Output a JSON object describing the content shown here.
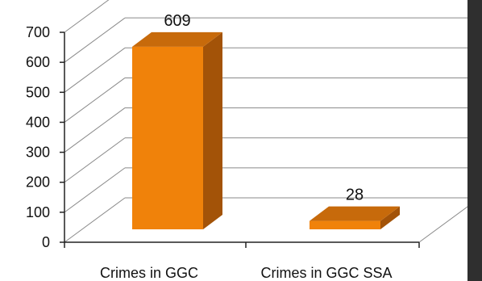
{
  "chart_data": {
    "type": "bar",
    "categories": [
      "Crimes in GGC",
      "Crimes in GGC SSA"
    ],
    "values": [
      609,
      28
    ],
    "data_labels": [
      "609",
      "28"
    ],
    "ylim": [
      0,
      700
    ],
    "y_ticks": [
      0,
      100,
      200,
      300,
      400,
      500,
      600,
      700
    ],
    "grid": true,
    "style": "3d-column",
    "colors": {
      "front": "#f0820a",
      "top": "#c76a0b",
      "side": "#a35308",
      "grid": "#8a8a8a",
      "side_panel": "#2f2f2f"
    }
  }
}
